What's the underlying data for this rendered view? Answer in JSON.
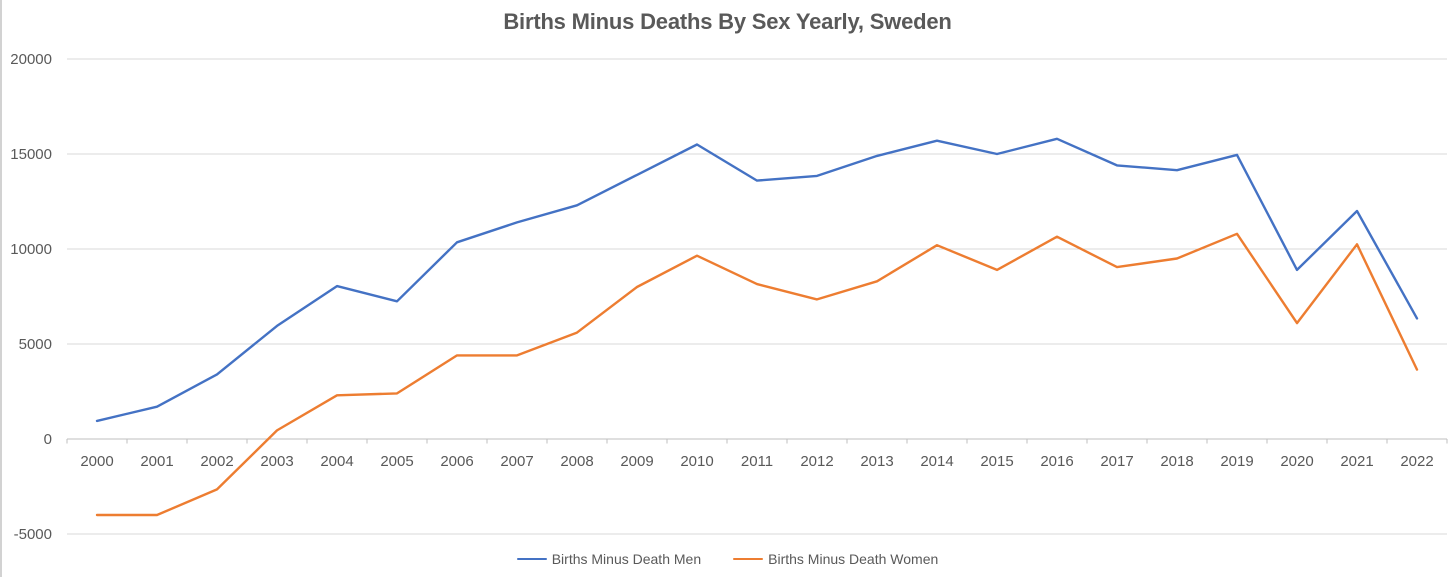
{
  "chart_data": {
    "type": "line",
    "title": "Births Minus Deaths By Sex Yearly, Sweden",
    "categories": [
      2000,
      2001,
      2002,
      2003,
      2004,
      2005,
      2006,
      2007,
      2008,
      2009,
      2010,
      2011,
      2012,
      2013,
      2014,
      2015,
      2016,
      2017,
      2018,
      2019,
      2020,
      2021,
      2022
    ],
    "series": [
      {
        "name": "Births Minus Death Men",
        "color": "#4472C4",
        "values": [
          950,
          1700,
          3400,
          5950,
          8050,
          7250,
          10350,
          11400,
          12300,
          13900,
          15500,
          13600,
          13850,
          14900,
          15700,
          15000,
          15800,
          14400,
          14150,
          14950,
          8900,
          12000,
          6350
        ]
      },
      {
        "name": "Births Minus Death Women",
        "color": "#ED7D31",
        "values": [
          -4000,
          -4000,
          -2650,
          450,
          2300,
          2400,
          4400,
          4400,
          5600,
          8000,
          9650,
          8150,
          7350,
          8300,
          10200,
          8900,
          10650,
          9050,
          9500,
          10800,
          6100,
          10250,
          3650
        ]
      }
    ],
    "y_axis": {
      "min": -5000,
      "max": 20000,
      "tick_interval": 5000,
      "ticks": [
        20000,
        15000,
        10000,
        5000,
        0,
        -5000
      ],
      "tick_labels": [
        "20000",
        "15000",
        "10000",
        "5000",
        "0",
        "-5000"
      ]
    },
    "x_axis": {
      "tick_labels": [
        "2000",
        "2001",
        "2002",
        "2003",
        "2004",
        "2005",
        "2006",
        "2007",
        "2008",
        "2009",
        "2010",
        "2011",
        "2012",
        "2013",
        "2014",
        "2015",
        "2016",
        "2017",
        "2018",
        "2019",
        "2020",
        "2021",
        "2022"
      ]
    },
    "grid": true,
    "legend_position": "bottom"
  },
  "colors": {
    "title_text": "#595959",
    "axis_label_text": "#595959",
    "gridline": "#D9D9D9",
    "axis_line": "#BFBFBF"
  }
}
